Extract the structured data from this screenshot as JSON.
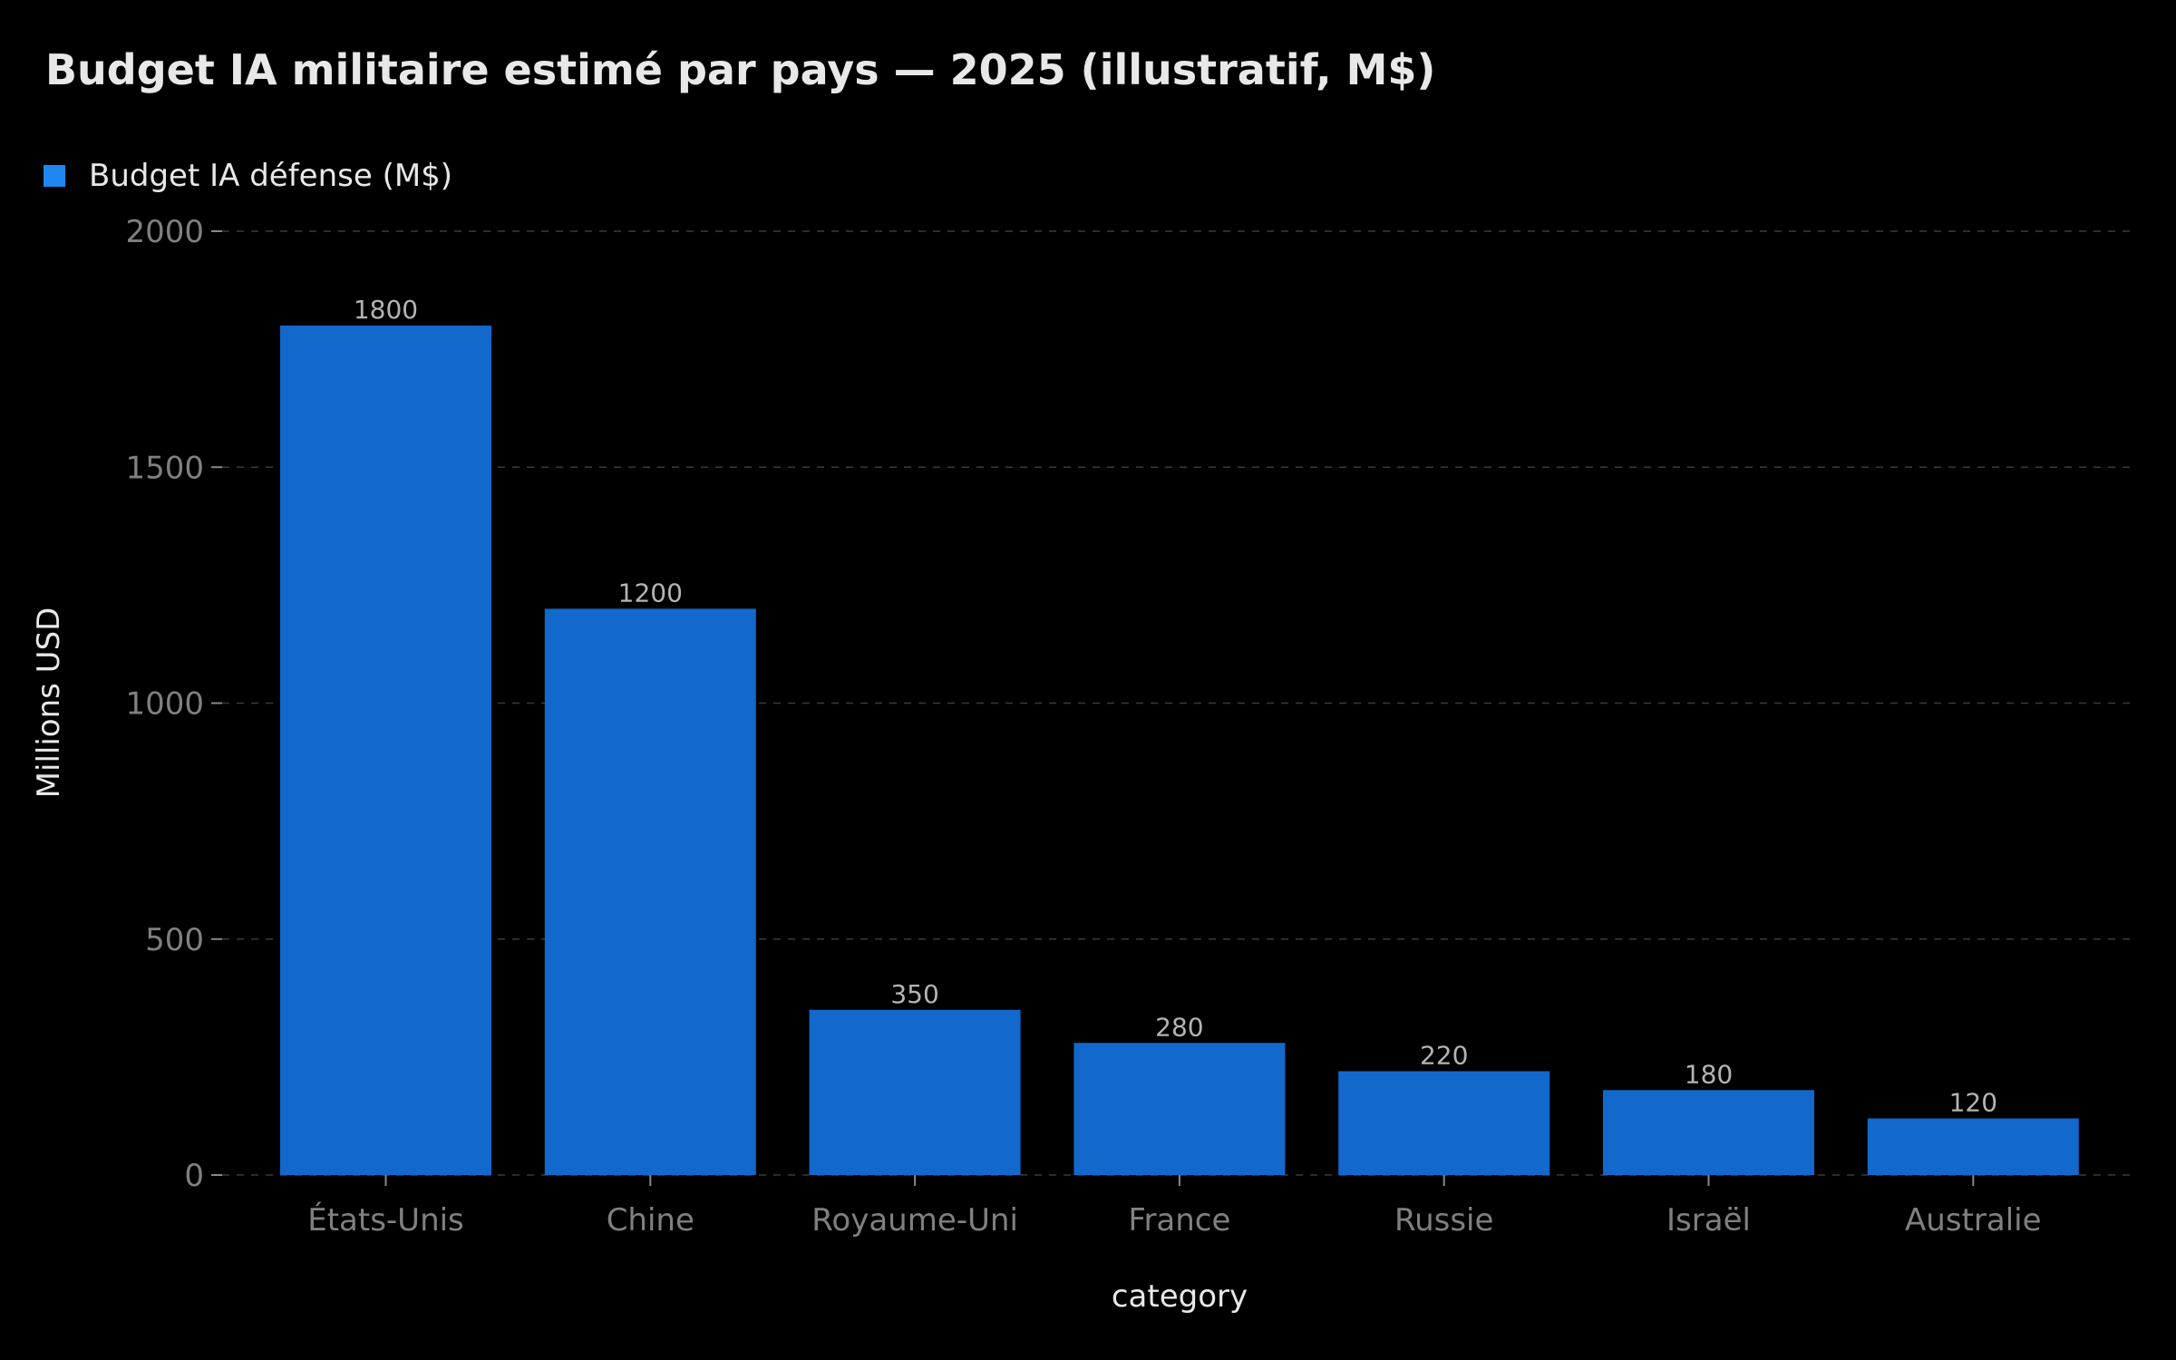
{
  "chart_data": {
    "type": "bar",
    "title": "Budget IA militaire estimé par pays — 2025 (illustratif, M$)",
    "xlabel": "category",
    "ylabel": "Millions USD",
    "categories": [
      "États-Unis",
      "Chine",
      "Royaume-Uni",
      "France",
      "Russie",
      "Israël",
      "Australie"
    ],
    "series": [
      {
        "name": "Budget IA défense (M$)",
        "values": [
          1800,
          1200,
          350,
          280,
          220,
          180,
          120
        ],
        "color": "#1368cc"
      }
    ],
    "ylim": [
      0,
      2000
    ],
    "yticks": [
      0,
      500,
      1000,
      1500,
      2000
    ],
    "grid": true,
    "legend_position": "top-left",
    "legend_swatch_color": "#1e88f0",
    "background_color": "#000000"
  }
}
